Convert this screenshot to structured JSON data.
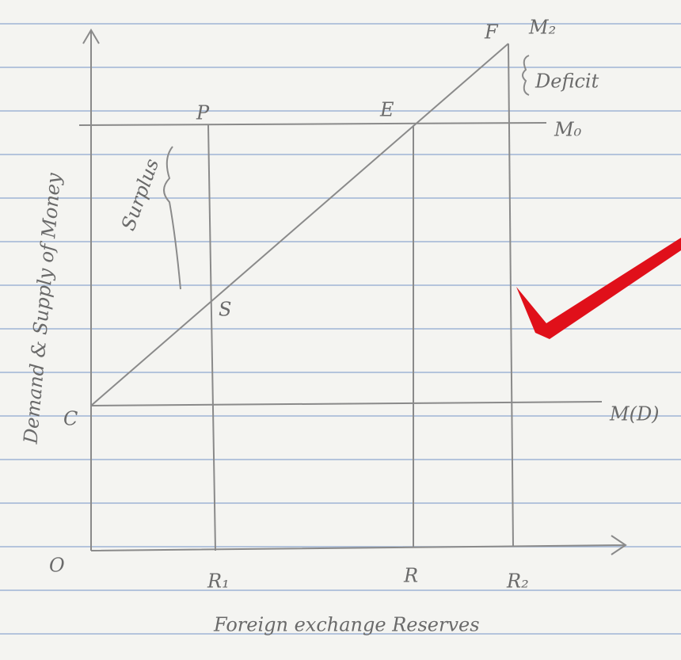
{
  "axes": {
    "y_label": "Demand & Supply of Money",
    "x_label": "Foreign exchange Reserves",
    "origin": "O"
  },
  "points": {
    "F": "F",
    "P": "P",
    "E": "E",
    "S": "S",
    "C": "C"
  },
  "lines": {
    "M2": "M₂",
    "M0": "M₀",
    "MD": "M(D)"
  },
  "ticks": {
    "R1": "R₁",
    "R": "R",
    "R2": "R₂"
  },
  "annotations": {
    "deficit": "Deficit",
    "surplus": "Surplus"
  }
}
